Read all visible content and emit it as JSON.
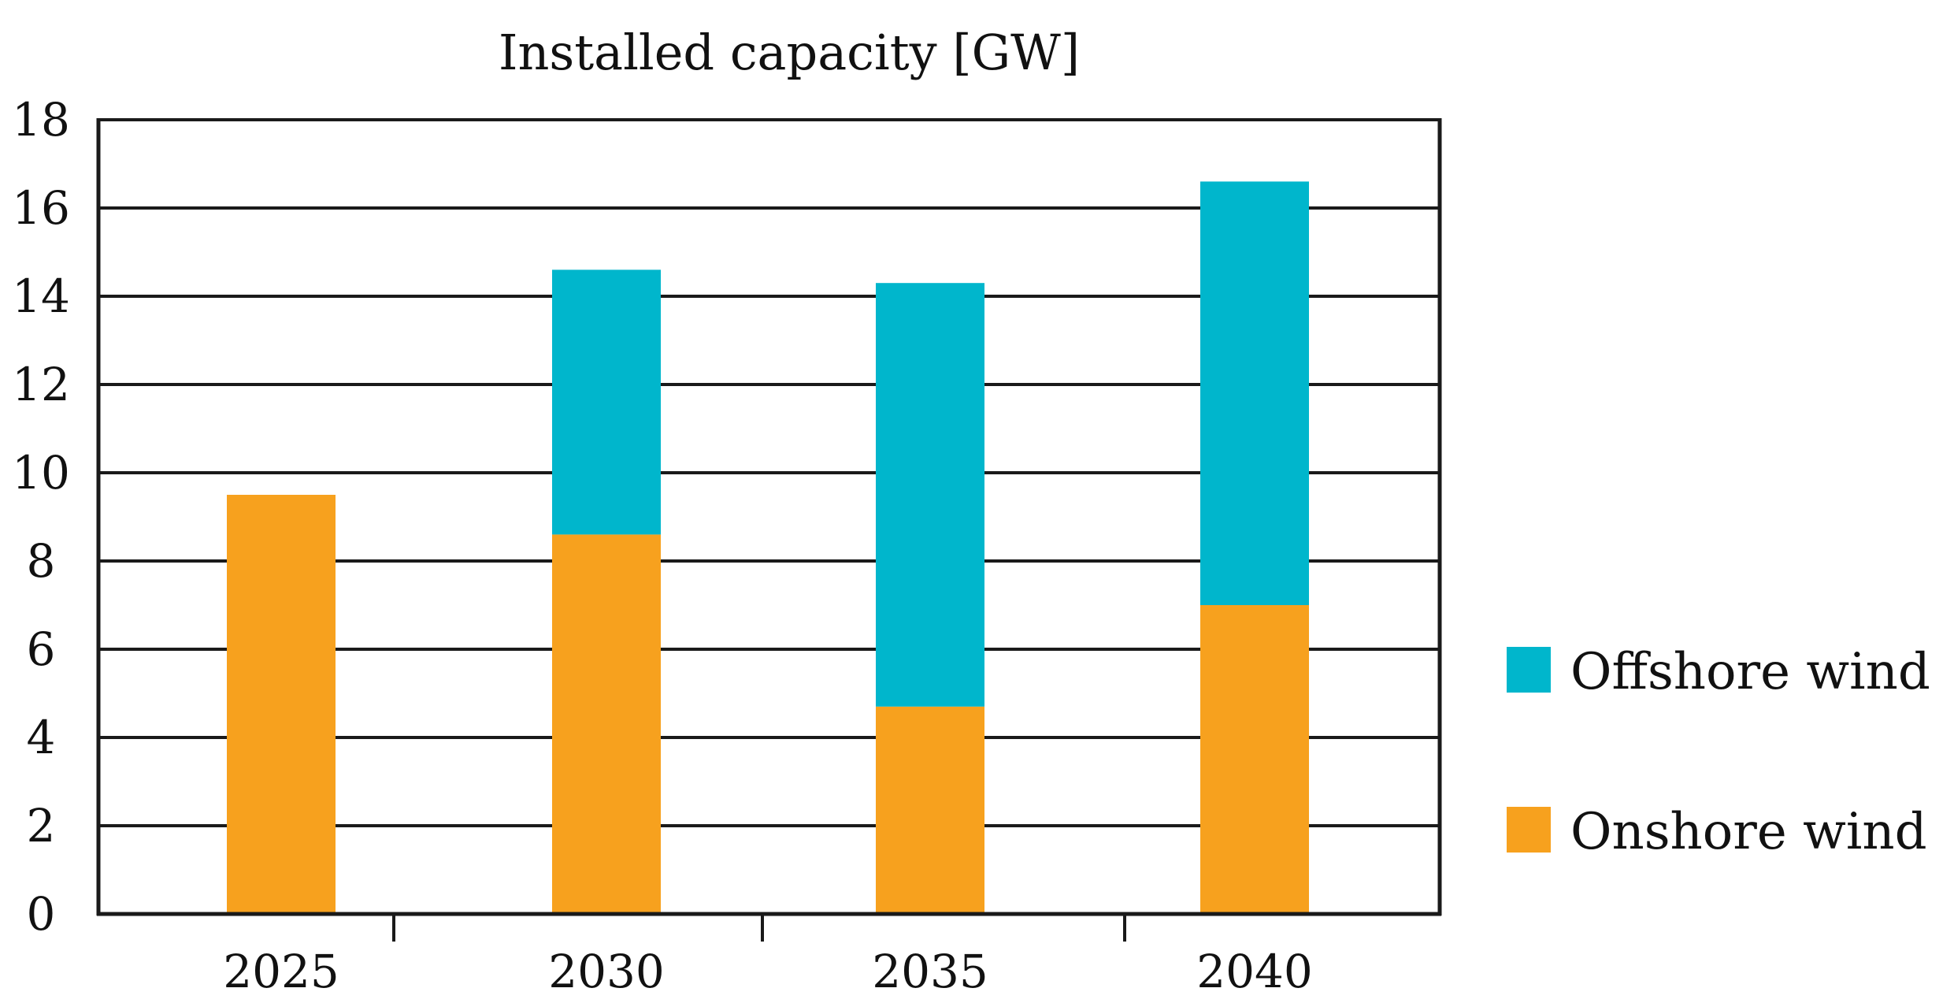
{
  "chart_data": {
    "type": "bar",
    "stacked": true,
    "title": "Installed capacity [GW]",
    "xlabel": "",
    "ylabel": "",
    "categories": [
      "2025",
      "2030",
      "2035",
      "2040"
    ],
    "ylim": [
      0,
      18
    ],
    "yticks": [
      "0",
      "2",
      "4",
      "6",
      "8",
      "10",
      "12",
      "14",
      "16",
      "18"
    ],
    "grid": true,
    "legend_position": "right",
    "series": [
      {
        "name": "Onshore wind",
        "color": "#F7A11E",
        "values": [
          9.5,
          8.6,
          4.7,
          7.0
        ]
      },
      {
        "name": "Offshore wind",
        "color": "#00B6CC",
        "values": [
          0,
          6.0,
          9.6,
          9.6
        ]
      }
    ],
    "legend": [
      "Offshore wind",
      "Onshore wind"
    ]
  }
}
